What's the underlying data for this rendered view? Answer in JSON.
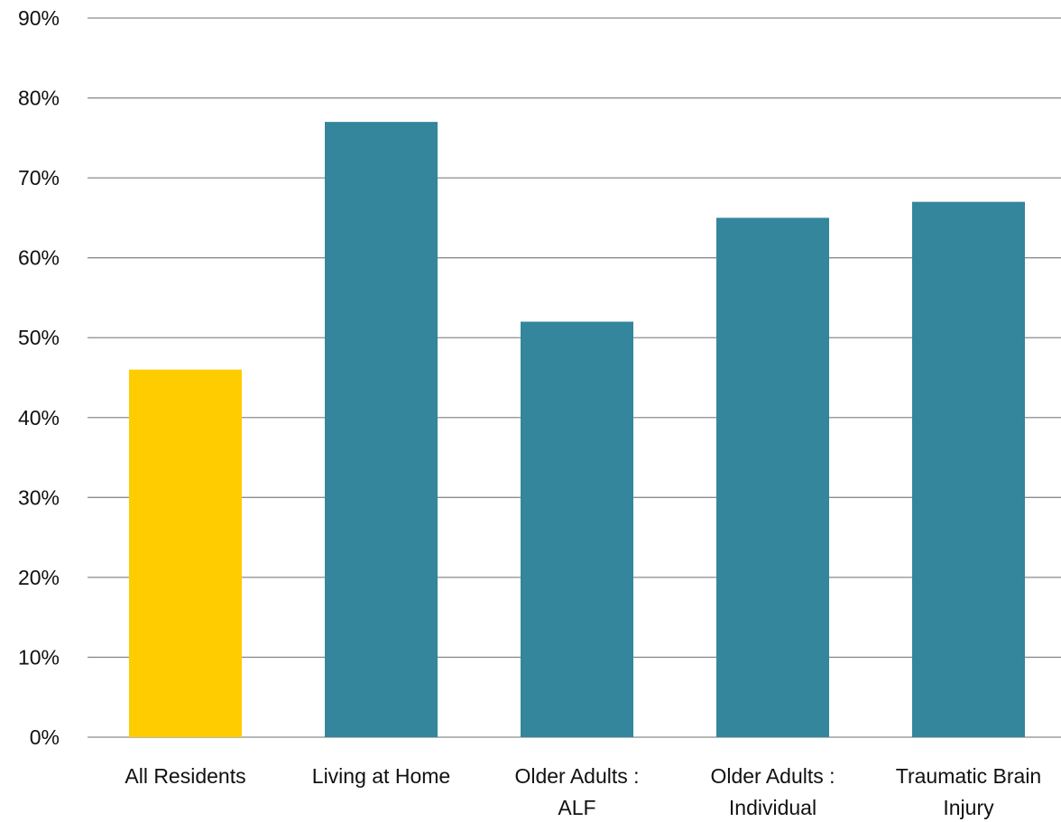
{
  "chart_data": {
    "type": "bar",
    "title": "",
    "xlabel": "",
    "ylabel": "",
    "ylim": [
      0,
      90
    ],
    "y_ticks": [
      "0%",
      "10%",
      "20%",
      "30%",
      "40%",
      "50%",
      "60%",
      "70%",
      "80%",
      "90%"
    ],
    "categories": [
      [
        "All Residents"
      ],
      [
        "Living at Home"
      ],
      [
        "Older Adults :",
        "ALF"
      ],
      [
        "Older Adults :",
        "Individual"
      ],
      [
        "Traumatic Brain",
        "Injury"
      ]
    ],
    "values": [
      46,
      77,
      52,
      65,
      67
    ],
    "bar_colors": [
      "#FFCC00",
      "#33869C",
      "#33869C",
      "#33869C",
      "#33869C"
    ],
    "grid": true,
    "legend": "none"
  }
}
